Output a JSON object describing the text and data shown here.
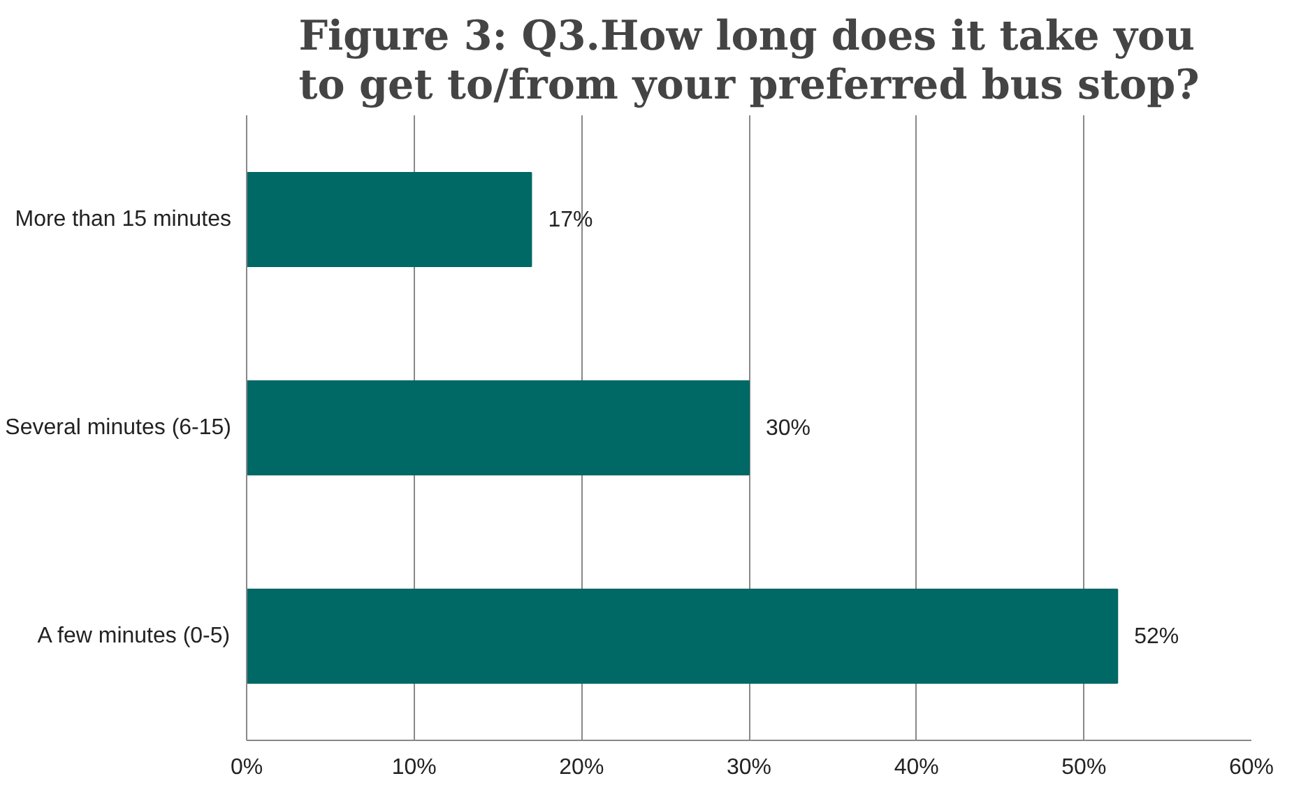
{
  "chart_data": {
    "type": "bar",
    "orientation": "horizontal",
    "title": "Figure 3: Q3.How long does it take you\nto get to/from your preferred bus stop?",
    "categories": [
      "More than 15 minutes",
      "Several minutes (6-15)",
      "A few minutes (0-5)"
    ],
    "values": [
      17,
      30,
      52
    ],
    "value_labels": [
      "17%",
      "30%",
      "52%"
    ],
    "color": "#006865",
    "xlim": [
      0,
      60
    ],
    "xticks": [
      {
        "value": 0,
        "label": "0%"
      },
      {
        "value": 10,
        "label": "10%"
      },
      {
        "value": 20,
        "label": "20%"
      },
      {
        "value": 30,
        "label": "30%"
      },
      {
        "value": 40,
        "label": "40%"
      },
      {
        "value": 50,
        "label": "50%"
      },
      {
        "value": 60,
        "label": "60%"
      }
    ],
    "grid": "x"
  }
}
